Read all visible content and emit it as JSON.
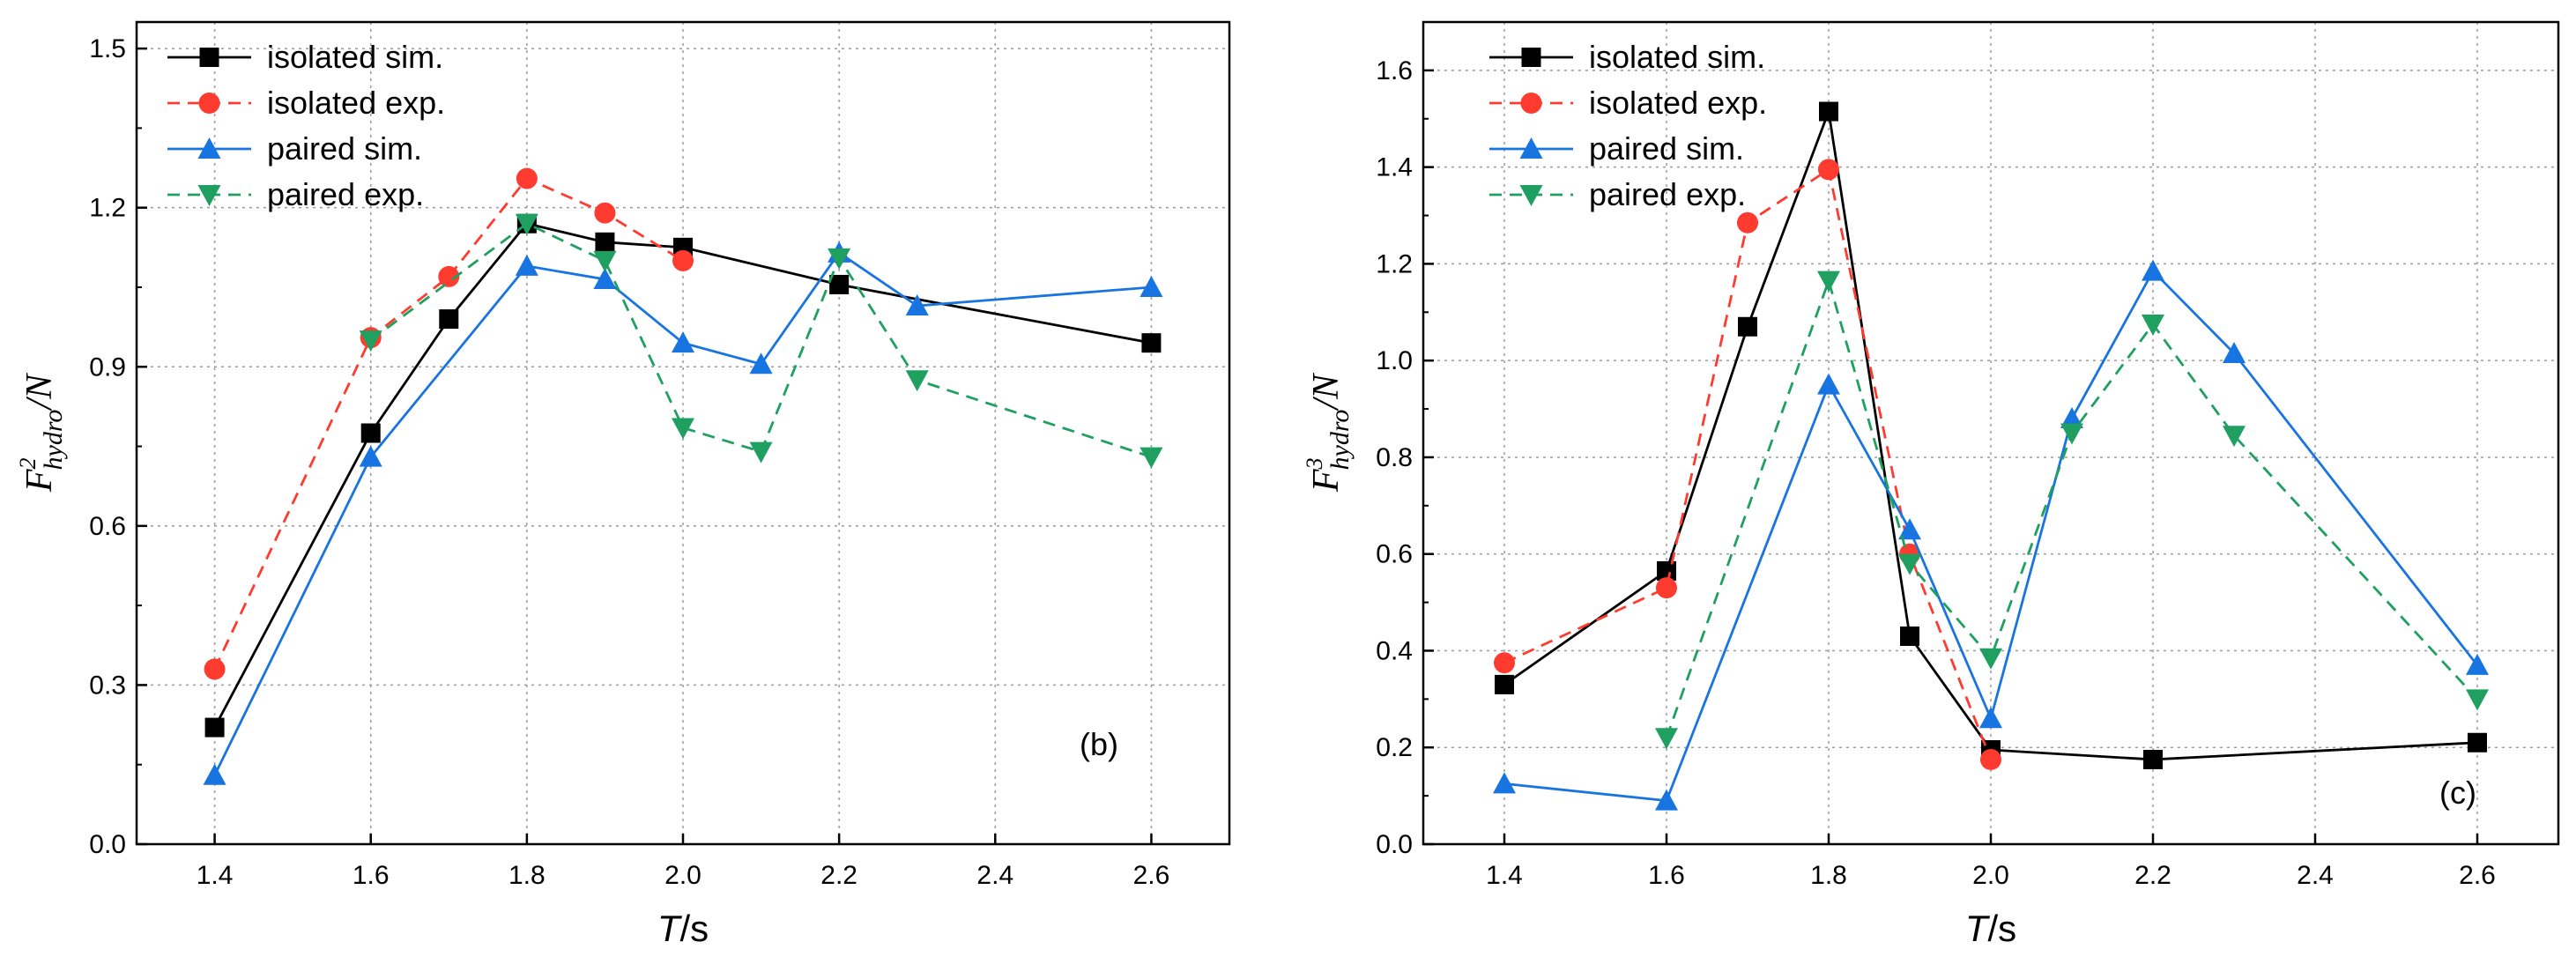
{
  "chart_data": [
    {
      "type": "line",
      "panel_label": "(b)",
      "xlabel": {
        "italic": "T",
        "unit": "/s"
      },
      "ylabel": {
        "base": "F",
        "sup": "2",
        "sub": "hydro",
        "unit": "/N"
      },
      "xlim": [
        1.3,
        2.7
      ],
      "ylim": [
        0.0,
        1.55
      ],
      "xticks": [
        1.4,
        1.6,
        1.8,
        2.0,
        2.2,
        2.4,
        2.6
      ],
      "xtick_labels": [
        "1.4",
        "1.6",
        "1.8",
        "2.0",
        "2.2",
        "2.4",
        "2.6"
      ],
      "yticks": [
        0.0,
        0.3,
        0.6,
        0.9,
        1.2,
        1.5
      ],
      "ytick_labels": [
        "0.0",
        "0.3",
        "0.6",
        "0.9",
        "1.2",
        "1.5"
      ],
      "grid": true,
      "legend_position": "top-left",
      "series": [
        {
          "name": "isolated sim.",
          "color": "#000000",
          "dash": "solid",
          "marker": "square",
          "x": [
            1.4,
            1.6,
            1.7,
            1.8,
            1.9,
            2.0,
            2.2,
            2.6
          ],
          "y": [
            0.22,
            0.775,
            0.99,
            1.17,
            1.135,
            1.125,
            1.055,
            0.945
          ]
        },
        {
          "name": "isolated exp.",
          "color": "#ff3b30",
          "dash": "dashed",
          "marker": "circle",
          "x": [
            1.4,
            1.6,
            1.7,
            1.8,
            1.9,
            2.0
          ],
          "y": [
            0.33,
            0.955,
            1.07,
            1.255,
            1.19,
            1.1
          ]
        },
        {
          "name": "paired sim.",
          "color": "#1874e0",
          "dash": "solid",
          "marker": "triangle-up",
          "x": [
            1.4,
            1.6,
            1.8,
            1.9,
            2.0,
            2.1,
            2.2,
            2.3,
            2.6
          ],
          "y": [
            0.13,
            0.73,
            1.09,
            1.065,
            0.945,
            0.905,
            1.115,
            1.015,
            1.05
          ]
        },
        {
          "name": "paired exp.",
          "color": "#1fa060",
          "dash": "dashed",
          "marker": "triangle-down",
          "x": [
            1.6,
            1.8,
            1.9,
            2.0,
            2.1,
            2.2,
            2.3,
            2.6
          ],
          "y": [
            0.95,
            1.17,
            1.1,
            0.785,
            0.74,
            1.105,
            0.875,
            0.73
          ]
        }
      ]
    },
    {
      "type": "line",
      "panel_label": "(c)",
      "xlabel": {
        "italic": "T",
        "unit": "/s"
      },
      "ylabel": {
        "base": "F",
        "sup": "3",
        "sub": "hydro",
        "unit": "/N"
      },
      "xlim": [
        1.3,
        2.7
      ],
      "ylim": [
        0.0,
        1.7
      ],
      "xticks": [
        1.4,
        1.6,
        1.8,
        2.0,
        2.2,
        2.4,
        2.6
      ],
      "xtick_labels": [
        "1.4",
        "1.6",
        "1.8",
        "2.0",
        "2.2",
        "2.4",
        "2.6"
      ],
      "yticks": [
        0.0,
        0.2,
        0.4,
        0.6,
        0.8,
        1.0,
        1.2,
        1.4,
        1.6
      ],
      "ytick_labels": [
        "0.0",
        "0.2",
        "0.4",
        "0.6",
        "0.8",
        "1.0",
        "1.2",
        "1.4",
        "1.6"
      ],
      "grid": true,
      "legend_position": "top-left",
      "series": [
        {
          "name": "isolated sim.",
          "color": "#000000",
          "dash": "solid",
          "marker": "square",
          "x": [
            1.4,
            1.6,
            1.7,
            1.8,
            1.9,
            2.0,
            2.2,
            2.6
          ],
          "y": [
            0.33,
            0.565,
            1.07,
            1.515,
            0.43,
            0.195,
            0.175,
            0.21
          ]
        },
        {
          "name": "isolated exp.",
          "color": "#ff3b30",
          "dash": "dashed",
          "marker": "circle",
          "x": [
            1.4,
            1.6,
            1.7,
            1.8,
            1.9,
            2.0
          ],
          "y": [
            0.375,
            0.53,
            1.285,
            1.395,
            0.6,
            0.175
          ]
        },
        {
          "name": "paired sim.",
          "color": "#1874e0",
          "dash": "solid",
          "marker": "triangle-up",
          "x": [
            1.4,
            1.6,
            1.8,
            1.9,
            2.0,
            2.1,
            2.2,
            2.3,
            2.6
          ],
          "y": [
            0.125,
            0.09,
            0.95,
            0.65,
            0.26,
            0.88,
            1.185,
            1.015,
            0.37
          ]
        },
        {
          "name": "paired exp.",
          "color": "#1fa060",
          "dash": "dashed",
          "marker": "triangle-down",
          "x": [
            1.6,
            1.8,
            1.9,
            2.0,
            2.1,
            2.2,
            2.3,
            2.6
          ],
          "y": [
            0.22,
            1.165,
            0.58,
            0.385,
            0.85,
            1.075,
            0.845,
            0.3
          ]
        }
      ]
    }
  ]
}
